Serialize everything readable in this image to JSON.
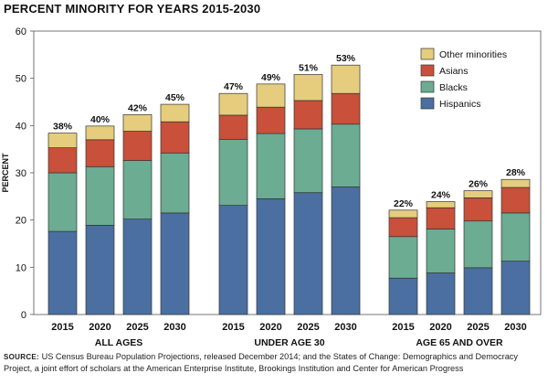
{
  "chart_data": {
    "type": "bar",
    "stacked": true,
    "title": "PERCENT MINORITY FOR YEARS 2015-2030",
    "ylabel": "PERCENT",
    "xlabel": "",
    "ylim": [
      0,
      60
    ],
    "yticks": [
      0,
      10,
      20,
      30,
      40,
      50,
      60
    ],
    "legend_position": "top-right",
    "series": [
      {
        "name": "Hispanics",
        "color": "#4a6fa0"
      },
      {
        "name": "Blacks",
        "color": "#6bac93"
      },
      {
        "name": "Asians",
        "color": "#c9503a"
      },
      {
        "name": "Other minorities",
        "color": "#e5cd7d"
      }
    ],
    "legend_order": [
      "Other minorities",
      "Asians",
      "Blacks",
      "Hispanics"
    ],
    "groups": [
      {
        "label": "ALL AGES",
        "bars": [
          {
            "year": "2015",
            "total_label": "38%",
            "values": [
              17.6,
              12.4,
              5.3,
              3.1
            ]
          },
          {
            "year": "2020",
            "total_label": "40%",
            "values": [
              18.9,
              12.4,
              5.7,
              2.9
            ]
          },
          {
            "year": "2025",
            "total_label": "42%",
            "values": [
              20.2,
              12.4,
              6.2,
              3.5
            ]
          },
          {
            "year": "2030",
            "total_label": "45%",
            "values": [
              21.5,
              12.7,
              6.6,
              3.7
            ]
          }
        ]
      },
      {
        "label": "UNDER AGE 30",
        "bars": [
          {
            "year": "2015",
            "total_label": "47%",
            "values": [
              23.1,
              14.0,
              5.1,
              4.6
            ]
          },
          {
            "year": "2020",
            "total_label": "49%",
            "values": [
              24.5,
              13.8,
              5.6,
              4.9
            ]
          },
          {
            "year": "2025",
            "total_label": "51%",
            "values": [
              25.8,
              13.5,
              6.0,
              5.5
            ]
          },
          {
            "year": "2030",
            "total_label": "53%",
            "values": [
              27.0,
              13.3,
              6.5,
              6.0
            ]
          }
        ]
      },
      {
        "label": "AGE 65 AND OVER",
        "bars": [
          {
            "year": "2015",
            "total_label": "22%",
            "values": [
              7.7,
              8.8,
              4.0,
              1.6
            ]
          },
          {
            "year": "2020",
            "total_label": "24%",
            "values": [
              8.8,
              9.3,
              4.5,
              1.3
            ]
          },
          {
            "year": "2025",
            "total_label": "26%",
            "values": [
              9.9,
              9.9,
              4.9,
              1.5
            ]
          },
          {
            "year": "2030",
            "total_label": "28%",
            "values": [
              11.3,
              10.2,
              5.4,
              1.7
            ]
          }
        ]
      }
    ]
  },
  "source": {
    "label": "SOURCE:",
    "text": "US Census Bureau Population Projections, released December 2014; and the States of Change: Demographics and Democracy Project, a joint effort of scholars at the American Enterprise Institute, Brookings Institution and Center for American Progress"
  }
}
